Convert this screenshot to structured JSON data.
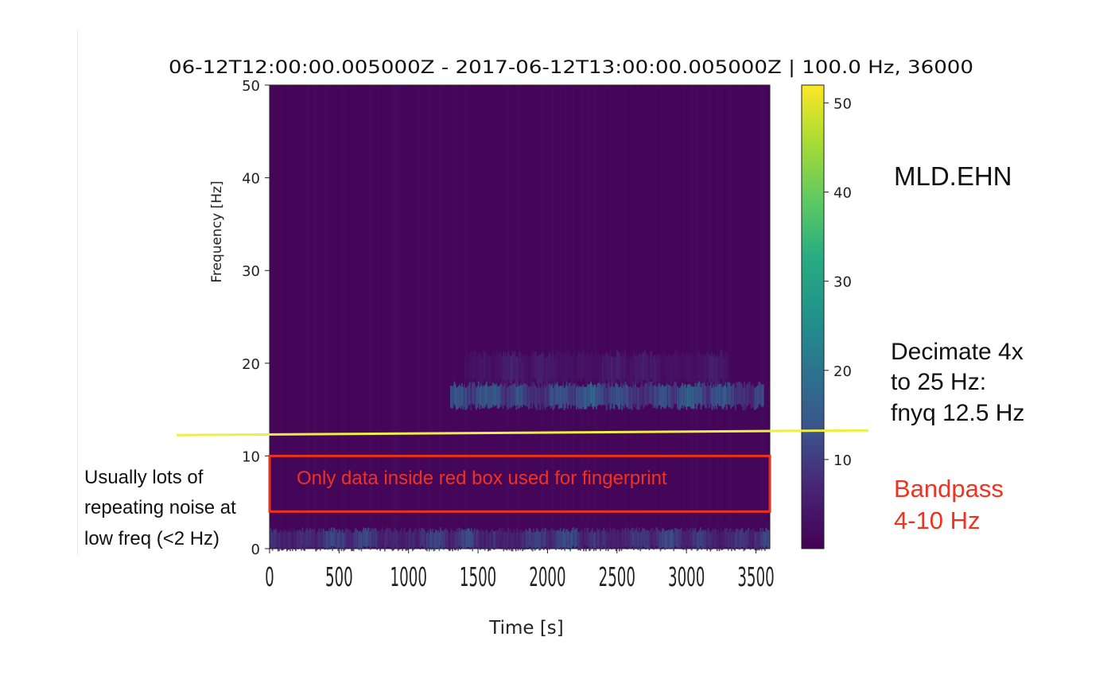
{
  "chart_data": {
    "type": "heatmap",
    "title": "06-12T12:00:00.005000Z - 2017-06-12T13:00:00.005000Z | 100.0 Hz, 36000",
    "xlabel": "Time [s]",
    "ylabel": "Frequency [Hz]",
    "xlim": [
      0,
      3600
    ],
    "ylim": [
      0,
      50
    ],
    "xticks": [
      "0",
      "500",
      "1000",
      "1500",
      "2000",
      "2500",
      "3000",
      "3500"
    ],
    "yticks": [
      "0",
      "10",
      "20",
      "30",
      "40",
      "50"
    ],
    "colorbar": {
      "ticks": [
        "10",
        "20",
        "30",
        "40",
        "50"
      ],
      "range": [
        0,
        52
      ],
      "colormap": "viridis"
    },
    "features": [
      {
        "kind": "band",
        "t_start": 1300,
        "t_end": 3550,
        "freq_center": 16.5,
        "freq_halfwidth": 1.2,
        "peak_intensity": 24
      },
      {
        "kind": "band",
        "t_start": 1400,
        "t_end": 3300,
        "freq_center": 19.5,
        "freq_halfwidth": 1.5,
        "peak_intensity": 8
      },
      {
        "kind": "band",
        "t_start": 0,
        "t_end": 3600,
        "freq_center": 1.0,
        "freq_halfwidth": 1.0,
        "peak_intensity": 17
      }
    ],
    "annotations": {
      "nyquist_line_hz": 12.5,
      "red_box": {
        "t": [
          0,
          3600
        ],
        "f": [
          4,
          10
        ],
        "label": "Only data inside red box used for fingerprint"
      }
    }
  },
  "notes": {
    "station": "MLD.EHN",
    "decimate": "Decimate 4x\nto 25 Hz:\n fnyq 12.5 Hz",
    "bandpass": "Bandpass\n4-10 Hz",
    "lowfreq": "Usually lots of\nrepeating noise at\nlow freq (<2 Hz)"
  },
  "colors": {
    "nyquist_line": "#eeee44",
    "red_box": "#e8321e",
    "annotation_red": "#ee3322",
    "viridis_low": "#440154",
    "viridis_high": "#fde725"
  }
}
